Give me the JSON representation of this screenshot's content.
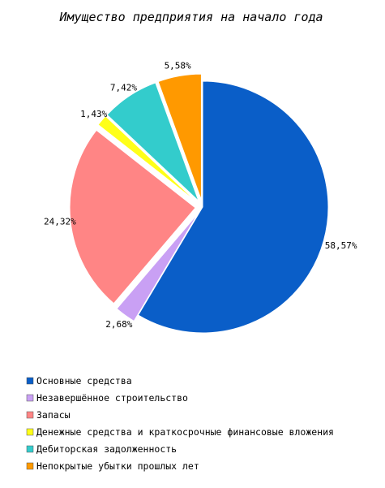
{
  "chart_data": {
    "type": "pie",
    "title": "Имущество предприятия на начало года",
    "legend_position": "bottom",
    "slices": [
      {
        "name": "Основные средства",
        "value": 58.57,
        "label": "58,57%",
        "color": "#0a5ec8",
        "exploded": false
      },
      {
        "name": "Незавершённое строительство",
        "value": 2.68,
        "label": "2,68%",
        "color": "#c9a0f4",
        "exploded": true
      },
      {
        "name": "Запасы",
        "value": 24.32,
        "label": "24,32%",
        "color": "#ff8585",
        "exploded": true
      },
      {
        "name": "Денежные средства и краткосрочные финансовые вложения",
        "value": 1.43,
        "label": "1,43%",
        "color": "#ffff19",
        "exploded": true
      },
      {
        "name": "Дебиторская задолженность",
        "value": 7.42,
        "label": "7,42%",
        "color": "#33cccc",
        "exploded": true
      },
      {
        "name": "Непокрытые убытки прошлых лет",
        "value": 5.58,
        "label": "5,58%",
        "color": "#ff9900",
        "exploded": true
      }
    ]
  }
}
